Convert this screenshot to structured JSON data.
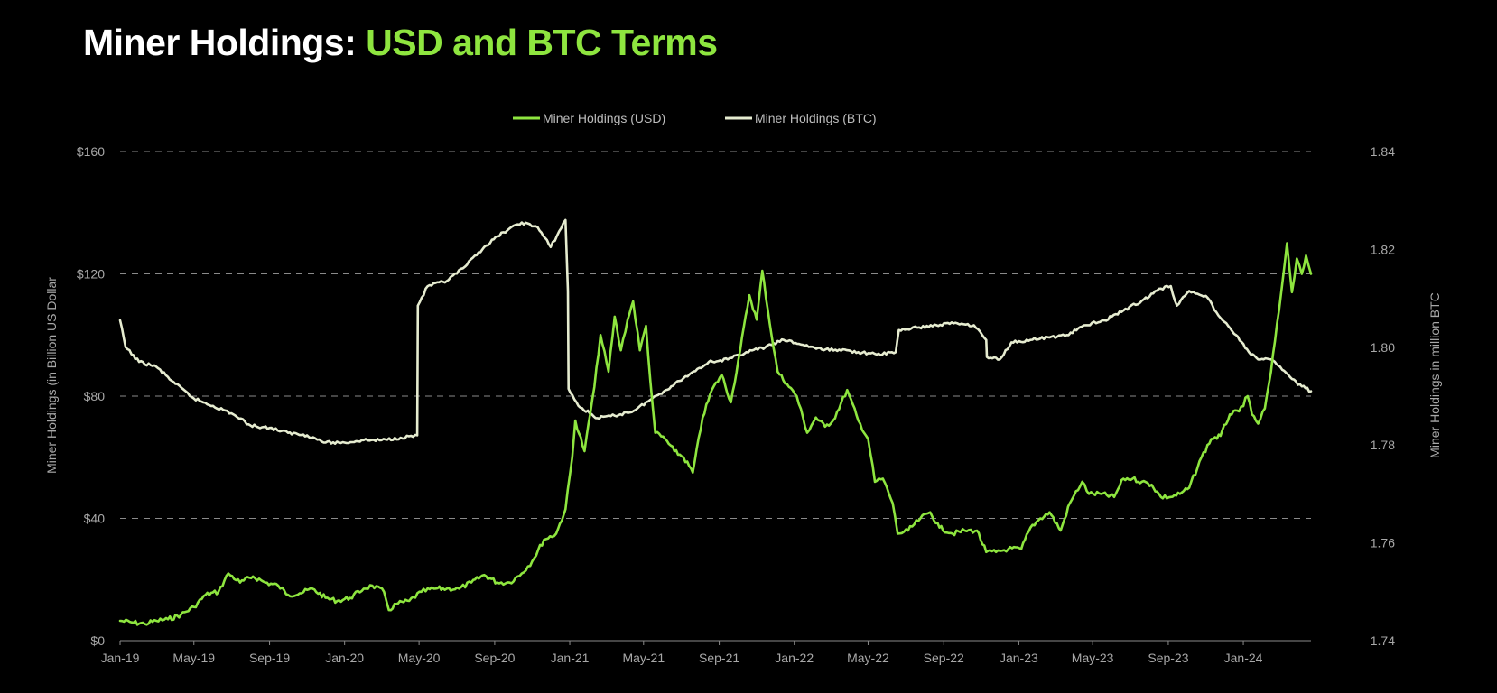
{
  "title": {
    "part1": "Miner Holdings: ",
    "part2": "USD and BTC Terms"
  },
  "colors": {
    "background": "#000000",
    "usd_series": "#8ee53f",
    "btc_series": "#e6ecd0",
    "axis_text": "#a8a8a8",
    "grid": "#8a8a8a"
  },
  "chart_data": {
    "type": "line",
    "title": "Miner Holdings: USD and BTC Terms",
    "xlabel": "",
    "ylabel_left": "Miner Holdings (in Billion  US Dollar",
    "ylabel_right": "Miner Holdings in million BTC",
    "x_ticks": [
      "Jan-19",
      "May-19",
      "Sep-19",
      "Jan-20",
      "May-20",
      "Sep-20",
      "Jan-21",
      "May-21",
      "Sep-21",
      "Jan-22",
      "May-22",
      "Sep-22",
      "Jan-23",
      "May-23",
      "Sep-23",
      "Jan-24"
    ],
    "x_range": [
      "2019-01-01",
      "2024-04-20"
    ],
    "y_left": {
      "range": [
        0,
        160
      ],
      "ticks": [
        0,
        40,
        80,
        120,
        160
      ],
      "tick_labels": [
        "$0",
        "$40",
        "$80",
        "$120",
        "$160"
      ]
    },
    "y_right": {
      "range": [
        1.74,
        1.84
      ],
      "ticks": [
        1.74,
        1.76,
        1.78,
        1.8,
        1.82,
        1.84
      ],
      "tick_labels": [
        "1.74",
        "1.76",
        "1.78",
        "1.80",
        "1.82",
        "1.84"
      ]
    },
    "grid": "horizontal dashed",
    "legend": "top-center",
    "series": [
      {
        "name": "Miner Holdings (USD)",
        "axis": "left",
        "color": "#8ee53f",
        "points": [
          [
            "2019-01-01",
            6.5
          ],
          [
            "2019-01-20",
            6
          ],
          [
            "2019-02-10",
            5.5
          ],
          [
            "2019-03-01",
            6.5
          ],
          [
            "2019-03-20",
            7
          ],
          [
            "2019-04-10",
            8.5
          ],
          [
            "2019-05-01",
            11
          ],
          [
            "2019-05-20",
            15
          ],
          [
            "2019-06-10",
            16
          ],
          [
            "2019-06-26",
            22
          ],
          [
            "2019-07-15",
            19
          ],
          [
            "2019-08-05",
            21
          ],
          [
            "2019-08-25",
            19
          ],
          [
            "2019-09-15",
            18
          ],
          [
            "2019-10-01",
            15
          ],
          [
            "2019-10-20",
            15.5
          ],
          [
            "2019-11-10",
            17
          ],
          [
            "2019-12-01",
            14
          ],
          [
            "2019-12-20",
            13
          ],
          [
            "2020-01-10",
            14
          ],
          [
            "2020-02-01",
            17
          ],
          [
            "2020-02-15",
            18
          ],
          [
            "2020-03-05",
            16
          ],
          [
            "2020-03-13",
            10
          ],
          [
            "2020-03-25",
            12
          ],
          [
            "2020-04-15",
            13
          ],
          [
            "2020-05-05",
            16
          ],
          [
            "2020-05-25",
            17
          ],
          [
            "2020-06-15",
            17
          ],
          [
            "2020-07-05",
            17
          ],
          [
            "2020-07-25",
            19
          ],
          [
            "2020-08-15",
            21.5
          ],
          [
            "2020-09-05",
            19
          ],
          [
            "2020-09-25",
            19
          ],
          [
            "2020-10-15",
            22
          ],
          [
            "2020-11-01",
            26
          ],
          [
            "2020-11-20",
            33
          ],
          [
            "2020-12-10",
            35
          ],
          [
            "2020-12-25",
            43
          ],
          [
            "2021-01-05",
            60
          ],
          [
            "2021-01-10",
            72
          ],
          [
            "2021-01-25",
            62
          ],
          [
            "2021-02-10",
            83
          ],
          [
            "2021-02-20",
            100
          ],
          [
            "2021-03-05",
            88
          ],
          [
            "2021-03-15",
            106
          ],
          [
            "2021-03-25",
            95
          ],
          [
            "2021-04-05",
            105
          ],
          [
            "2021-04-14",
            111
          ],
          [
            "2021-04-25",
            95
          ],
          [
            "2021-05-05",
            103
          ],
          [
            "2021-05-12",
            85
          ],
          [
            "2021-05-20",
            68
          ],
          [
            "2021-06-05",
            66
          ],
          [
            "2021-06-20",
            62
          ],
          [
            "2021-07-05",
            60
          ],
          [
            "2021-07-20",
            55
          ],
          [
            "2021-08-05",
            73
          ],
          [
            "2021-08-20",
            82
          ],
          [
            "2021-09-05",
            87
          ],
          [
            "2021-09-20",
            78
          ],
          [
            "2021-10-05",
            95
          ],
          [
            "2021-10-20",
            113
          ],
          [
            "2021-11-01",
            105
          ],
          [
            "2021-11-10",
            121
          ],
          [
            "2021-11-25",
            100
          ],
          [
            "2021-12-05",
            88
          ],
          [
            "2021-12-20",
            84
          ],
          [
            "2022-01-05",
            80
          ],
          [
            "2022-01-22",
            68
          ],
          [
            "2022-02-05",
            73
          ],
          [
            "2022-02-20",
            70
          ],
          [
            "2022-03-05",
            72
          ],
          [
            "2022-03-28",
            82
          ],
          [
            "2022-04-15",
            72
          ],
          [
            "2022-05-01",
            66
          ],
          [
            "2022-05-12",
            52
          ],
          [
            "2022-05-25",
            53
          ],
          [
            "2022-06-10",
            45
          ],
          [
            "2022-06-18",
            35
          ],
          [
            "2022-07-05",
            36
          ],
          [
            "2022-07-25",
            40
          ],
          [
            "2022-08-10",
            42
          ],
          [
            "2022-08-25",
            37
          ],
          [
            "2022-09-15",
            35
          ],
          [
            "2022-10-05",
            36
          ],
          [
            "2022-10-25",
            36
          ],
          [
            "2022-11-09",
            29
          ],
          [
            "2022-11-25",
            29
          ],
          [
            "2022-12-15",
            30
          ],
          [
            "2023-01-05",
            30
          ],
          [
            "2023-01-20",
            37
          ],
          [
            "2023-02-05",
            40
          ],
          [
            "2023-02-20",
            42
          ],
          [
            "2023-03-10",
            36
          ],
          [
            "2023-03-25",
            45
          ],
          [
            "2023-04-14",
            52
          ],
          [
            "2023-04-25",
            48
          ],
          [
            "2023-05-15",
            48
          ],
          [
            "2023-06-05",
            47
          ],
          [
            "2023-06-20",
            53
          ],
          [
            "2023-07-05",
            53
          ],
          [
            "2023-07-20",
            52
          ],
          [
            "2023-08-05",
            51
          ],
          [
            "2023-08-20",
            47
          ],
          [
            "2023-09-05",
            47
          ],
          [
            "2023-09-20",
            48
          ],
          [
            "2023-10-05",
            50
          ],
          [
            "2023-10-25",
            60
          ],
          [
            "2023-11-10",
            66
          ],
          [
            "2023-11-25",
            67
          ],
          [
            "2023-12-10",
            74
          ],
          [
            "2023-12-25",
            75
          ],
          [
            "2024-01-08",
            80
          ],
          [
            "2024-01-15",
            74
          ],
          [
            "2024-01-25",
            71
          ],
          [
            "2024-02-05",
            76
          ],
          [
            "2024-02-15",
            88
          ],
          [
            "2024-02-28",
            108
          ],
          [
            "2024-03-05",
            118
          ],
          [
            "2024-03-12",
            130
          ],
          [
            "2024-03-20",
            114
          ],
          [
            "2024-03-28",
            125
          ],
          [
            "2024-04-05",
            120
          ],
          [
            "2024-04-12",
            126
          ],
          [
            "2024-04-20",
            120
          ]
        ]
      },
      {
        "name": "Miner Holdings (BTC)",
        "axis": "right",
        "color": "#e6ecd0",
        "points": [
          [
            "2019-01-01",
            1.8055
          ],
          [
            "2019-01-10",
            1.8
          ],
          [
            "2019-02-01",
            1.797
          ],
          [
            "2019-03-01",
            1.796
          ],
          [
            "2019-04-01",
            1.7925
          ],
          [
            "2019-05-01",
            1.7895
          ],
          [
            "2019-06-01",
            1.788
          ],
          [
            "2019-07-01",
            1.7865
          ],
          [
            "2019-08-01",
            1.784
          ],
          [
            "2019-09-01",
            1.7835
          ],
          [
            "2019-10-01",
            1.7825
          ],
          [
            "2019-11-01",
            1.782
          ],
          [
            "2019-12-01",
            1.7805
          ],
          [
            "2020-01-01",
            1.7805
          ],
          [
            "2020-02-01",
            1.781
          ],
          [
            "2020-03-01",
            1.781
          ],
          [
            "2020-04-01",
            1.7815
          ],
          [
            "2020-04-28",
            1.782
          ],
          [
            "2020-04-29",
            1.8085
          ],
          [
            "2020-05-15",
            1.8125
          ],
          [
            "2020-06-15",
            1.8135
          ],
          [
            "2020-07-15",
            1.8165
          ],
          [
            "2020-08-15",
            1.8205
          ],
          [
            "2020-09-15",
            1.8235
          ],
          [
            "2020-10-15",
            1.8255
          ],
          [
            "2020-11-10",
            1.8245
          ],
          [
            "2020-12-01",
            1.8205
          ],
          [
            "2020-12-25",
            1.826
          ],
          [
            "2020-12-29",
            1.8115
          ],
          [
            "2020-12-30",
            1.7915
          ],
          [
            "2021-01-15",
            1.788
          ],
          [
            "2021-02-15",
            1.7855
          ],
          [
            "2021-03-15",
            1.786
          ],
          [
            "2021-04-15",
            1.787
          ],
          [
            "2021-05-15",
            1.7895
          ],
          [
            "2021-06-15",
            1.792
          ],
          [
            "2021-07-15",
            1.7945
          ],
          [
            "2021-08-15",
            1.797
          ],
          [
            "2021-09-15",
            1.7975
          ],
          [
            "2021-10-15",
            1.799
          ],
          [
            "2021-11-15",
            1.8
          ],
          [
            "2021-12-15",
            1.8015
          ],
          [
            "2022-01-15",
            1.8005
          ],
          [
            "2022-02-15",
            1.7995
          ],
          [
            "2022-03-15",
            1.7995
          ],
          [
            "2022-04-15",
            1.799
          ],
          [
            "2022-05-15",
            1.7985
          ],
          [
            "2022-06-15",
            1.799
          ],
          [
            "2022-06-20",
            1.8035
          ],
          [
            "2022-07-20",
            1.804
          ],
          [
            "2022-08-20",
            1.8045
          ],
          [
            "2022-09-20",
            1.805
          ],
          [
            "2022-10-20",
            1.8045
          ],
          [
            "2022-11-09",
            1.8015
          ],
          [
            "2022-11-10",
            1.798
          ],
          [
            "2022-12-01",
            1.7975
          ],
          [
            "2022-12-20",
            1.801
          ],
          [
            "2023-01-20",
            1.8015
          ],
          [
            "2023-02-20",
            1.802
          ],
          [
            "2023-03-20",
            1.8025
          ],
          [
            "2023-04-20",
            1.8045
          ],
          [
            "2023-05-20",
            1.8055
          ],
          [
            "2023-06-20",
            1.8075
          ],
          [
            "2023-07-20",
            1.8095
          ],
          [
            "2023-08-20",
            1.812
          ],
          [
            "2023-09-05",
            1.8125
          ],
          [
            "2023-09-15",
            1.8085
          ],
          [
            "2023-10-05",
            1.8115
          ],
          [
            "2023-11-01",
            1.8105
          ],
          [
            "2023-11-25",
            1.806
          ],
          [
            "2023-12-20",
            1.8025
          ],
          [
            "2024-01-10",
            1.799
          ],
          [
            "2024-01-25",
            1.7975
          ],
          [
            "2024-02-15",
            1.7975
          ],
          [
            "2024-03-01",
            1.796
          ],
          [
            "2024-03-20",
            1.7935
          ],
          [
            "2024-04-05",
            1.792
          ],
          [
            "2024-04-20",
            1.791
          ]
        ]
      }
    ]
  }
}
